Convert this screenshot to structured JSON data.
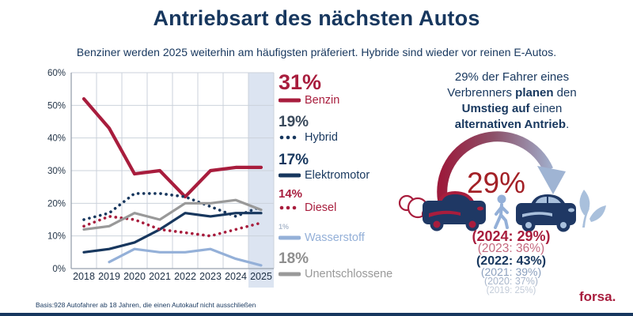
{
  "title": "Antriebsart des nächsten Autos",
  "subtitle": "Benziner werden 2025 weiterhin am häufigsten präferiert. Hybride sind wieder vor reinen E-Autos.",
  "footnote": "Basis:928 Autofahrer ab 18 Jahren, die einen Autokauf nicht ausschließen",
  "brand": "forsa.",
  "colors": {
    "navy": "#17375E",
    "crimson": "#A81D3D",
    "lightblue": "#94B0D8",
    "gray": "#999999",
    "grid": "#CBD2DB",
    "axis": "#97A1AD",
    "highlight": "#DCE4F1",
    "accent_red": "#A32026",
    "tick_text": "#253649"
  },
  "chart_data": {
    "type": "line",
    "categories": [
      "2018",
      "2019",
      "2020",
      "2021",
      "2022",
      "2023",
      "2024",
      "2025"
    ],
    "xlabel": "",
    "ylabel": "",
    "ylim": [
      0,
      60
    ],
    "ytick_step": 10,
    "ytick_suffix": "%",
    "grid": true,
    "highlight_category": "2025",
    "legend_position": "right",
    "series": [
      {
        "name": "Benzin",
        "current_label": "31%",
        "color": "#A81D3D",
        "label_color": "#A81D3D",
        "style": "solid",
        "emphasis": true,
        "values": [
          52,
          43,
          29,
          30,
          22,
          30,
          31,
          31
        ]
      },
      {
        "name": "Hybrid",
        "current_label": "19%",
        "color": "#17375E",
        "label_color": "#3A4A5C",
        "style": "dotted",
        "emphasis": false,
        "values": [
          15,
          17,
          23,
          23,
          22,
          19,
          16,
          19
        ]
      },
      {
        "name": "Elektromotor",
        "current_label": "17%",
        "color": "#17375E",
        "label_color": "#17375E",
        "style": "solid",
        "emphasis": false,
        "values": [
          5,
          6,
          8,
          12,
          17,
          16,
          17,
          17
        ]
      },
      {
        "name": "Diesel",
        "current_label": "14%",
        "color": "#A81D3D",
        "label_color": "#A81D3D",
        "style": "dotted",
        "emphasis": false,
        "values": [
          13,
          16,
          15,
          12,
          11,
          10,
          12,
          14
        ]
      },
      {
        "name": "Wasserstoff",
        "current_label": "1%",
        "color": "#94B0D8",
        "label_color": "#AEBBCD",
        "style": "solid",
        "emphasis": false,
        "values": [
          null,
          2,
          6,
          5,
          5,
          6,
          3,
          1
        ]
      },
      {
        "name": "Unentschlossene",
        "current_label": "18%",
        "color": "#999999",
        "label_color": "#8F8F8F",
        "style": "solid",
        "emphasis": false,
        "values": [
          12,
          13,
          17,
          15,
          20,
          20,
          21,
          18
        ]
      }
    ]
  },
  "right_panel": {
    "headline_lines": [
      [
        {
          "t": "29% der Fahrer eines"
        }
      ],
      [
        {
          "t": "Verbrenners "
        },
        {
          "t": "planen",
          "b": true
        },
        {
          "t": " den"
        }
      ],
      [
        {
          "t": "Umstieg auf",
          "b": true
        },
        {
          "t": " einen"
        }
      ],
      [
        {
          "t": "alternativen Antrieb",
          "b": true
        },
        {
          "t": "."
        }
      ]
    ],
    "arc_label": "29%",
    "history": [
      {
        "text": "(2024: 29%)",
        "color": "#A81D3D",
        "size": 18,
        "bold": true
      },
      {
        "text": "(2023: 36%)",
        "color": "#C4697F",
        "size": 15.5,
        "bold": false
      },
      {
        "text": "(2022: 43%)",
        "color": "#17375E",
        "size": 16,
        "bold": true
      },
      {
        "text": "(2021: 39%)",
        "color": "#8BA0BE",
        "size": 14,
        "bold": false
      },
      {
        "text": "(2020: 37%)",
        "color": "#A8B6CB",
        "size": 12.5,
        "bold": false
      },
      {
        "text": "(2019: 25%)",
        "color": "#C2CBD8",
        "size": 11.5,
        "bold": false
      }
    ]
  }
}
